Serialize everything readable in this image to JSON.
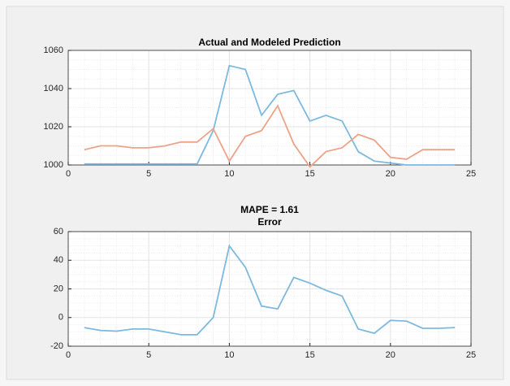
{
  "chart_data": [
    {
      "type": "line",
      "title": "Actual and Modeled Prediction",
      "x": [
        1,
        2,
        3,
        4,
        5,
        6,
        7,
        8,
        9,
        10,
        11,
        12,
        13,
        14,
        15,
        16,
        17,
        18,
        19,
        20,
        21,
        22,
        23,
        24
      ],
      "series": [
        {
          "color": "#7db9de",
          "values": [
            1000.5,
            1000.5,
            1000.5,
            1000.5,
            1000.5,
            1000.5,
            1000.5,
            1000.5,
            1018,
            1052,
            1050,
            1026,
            1037,
            1039,
            1023,
            1026,
            1023,
            1007,
            1002,
            1001,
            1000,
            1000,
            1000,
            1000
          ]
        },
        {
          "color": "#eda388",
          "values": [
            1008,
            1010,
            1010,
            1009,
            1009,
            1010,
            1012,
            1012,
            1019,
            1002,
            1015,
            1018,
            1031,
            1011,
            999,
            1007,
            1009,
            1016,
            1013,
            1004,
            1003,
            1008,
            1008,
            1008
          ]
        }
      ],
      "xlim": [
        0,
        25
      ],
      "xticks": [
        0,
        5,
        10,
        15,
        20,
        25
      ],
      "ylim": [
        1000,
        1060
      ],
      "yticks": [
        1000,
        1020,
        1040,
        1060
      ],
      "grid": true,
      "minor_grid": true
    },
    {
      "type": "line",
      "title": "MAPE = 1.61",
      "subtitle": "Error",
      "x": [
        1,
        2,
        3,
        4,
        5,
        6,
        7,
        8,
        9,
        10,
        11,
        12,
        13,
        14,
        15,
        16,
        17,
        18,
        19,
        20,
        21,
        22,
        23,
        24
      ],
      "series": [
        {
          "color": "#7db9de",
          "values": [
            -7,
            -9,
            -9.5,
            -8,
            -8,
            -10,
            -12,
            -12,
            0,
            50,
            35,
            8,
            6,
            28,
            24,
            19,
            15,
            -8,
            -11,
            -2,
            -2.5,
            -7.5,
            -7.5,
            -7
          ]
        }
      ],
      "xlim": [
        0,
        25
      ],
      "xticks": [
        0,
        5,
        10,
        15,
        20,
        25
      ],
      "ylim": [
        -20,
        60
      ],
      "yticks": [
        -20,
        0,
        20,
        40,
        60
      ],
      "grid": true,
      "minor_grid": true
    }
  ]
}
